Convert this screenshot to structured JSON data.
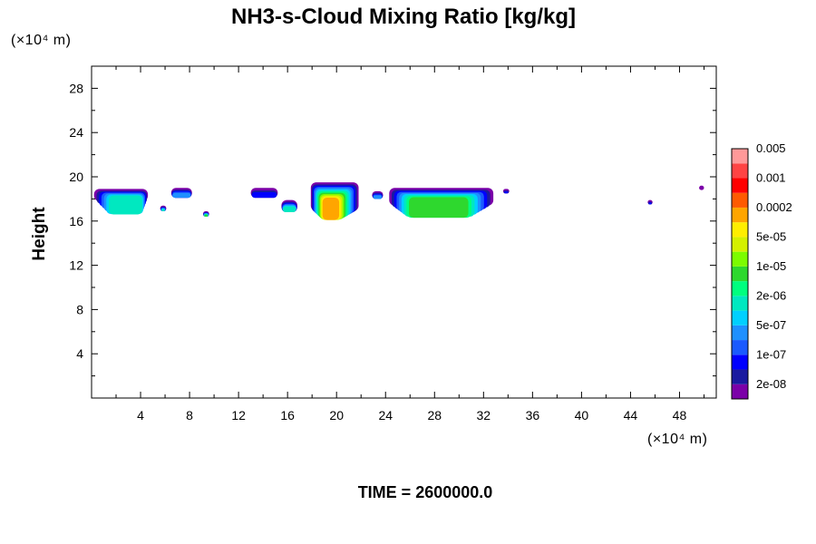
{
  "chart_data": {
    "type": "heatmap",
    "title": "NH3-s-Cloud Mixing Ratio [kg/kg]",
    "ylabel": "Height",
    "xlabel": "",
    "x_unit": "(×10⁴ m)",
    "y_unit": "(×10⁴ m)",
    "xlim": [
      0,
      51
    ],
    "ylim": [
      0,
      30
    ],
    "x_ticks": [
      4,
      8,
      12,
      16,
      20,
      24,
      28,
      32,
      36,
      40,
      44,
      48
    ],
    "y_ticks": [
      4,
      8,
      12,
      16,
      20,
      24,
      28
    ],
    "grid": false,
    "time_label": "TIME = 2600000.0",
    "colorbar": {
      "colors": [
        "#7b00a8",
        "#1a1aa0",
        "#0000ff",
        "#1a5aff",
        "#1e90ff",
        "#00d0ff",
        "#00e8c0",
        "#00ff7f",
        "#2ed82e",
        "#7cfc00",
        "#d4f000",
        "#ffee00",
        "#ffa500",
        "#ff5a00",
        "#ff0000",
        "#ff4444",
        "#ff9999"
      ],
      "labels": [
        "2e-08",
        "1e-07",
        "5e-07",
        "2e-06",
        "1e-05",
        "5e-05",
        "0.0002",
        "0.001",
        "0.005"
      ]
    },
    "regions": [
      {
        "x": [
          0.2,
          4.6
        ],
        "y_top": 18.9,
        "y_bottom": 17.8,
        "peak": "2e-06",
        "peak_x": [
          1.5,
          4.2
        ],
        "peak_bottom": 16.6
      },
      {
        "x": [
          6.5,
          8.2
        ],
        "y_top": 19.0,
        "y_bottom": 18.1,
        "peak": "5e-07"
      },
      {
        "x": [
          5.6,
          6.1
        ],
        "y_top": 17.4,
        "y_bottom": 16.9,
        "peak": "2e-06"
      },
      {
        "x": [
          9.1,
          9.6
        ],
        "y_top": 16.9,
        "y_bottom": 16.4,
        "peak": "1e-05"
      },
      {
        "x": [
          13.0,
          15.2
        ],
        "y_top": 19.0,
        "y_bottom": 18.1,
        "peak": "1e-07"
      },
      {
        "x": [
          15.5,
          16.8
        ],
        "y_top": 17.9,
        "y_bottom": 16.8,
        "peak": "2e-06"
      },
      {
        "x": [
          17.9,
          21.8
        ],
        "y_top": 19.5,
        "y_bottom": 16.9,
        "peak": "0.0002",
        "peak_x": [
          18.8,
          20.2
        ],
        "peak_bottom": 16.1
      },
      {
        "x": [
          22.9,
          23.8
        ],
        "y_top": 18.7,
        "y_bottom": 18.0,
        "peak": "5e-07"
      },
      {
        "x": [
          24.3,
          32.8
        ],
        "y_top": 19.0,
        "y_bottom": 17.4,
        "peak": "1e-05",
        "peak_x": [
          26.0,
          30.6
        ],
        "peak_bottom": 16.3
      },
      {
        "x": [
          33.6,
          34.1
        ],
        "y_top": 18.9,
        "y_bottom": 18.5,
        "peak": "1e-07"
      },
      {
        "x": [
          45.4,
          45.8
        ],
        "y_top": 17.9,
        "y_bottom": 17.5,
        "peak": "1e-07"
      },
      {
        "x": [
          49.6,
          50.0
        ],
        "y_top": 19.2,
        "y_bottom": 18.8,
        "peak": "2e-08"
      }
    ]
  }
}
